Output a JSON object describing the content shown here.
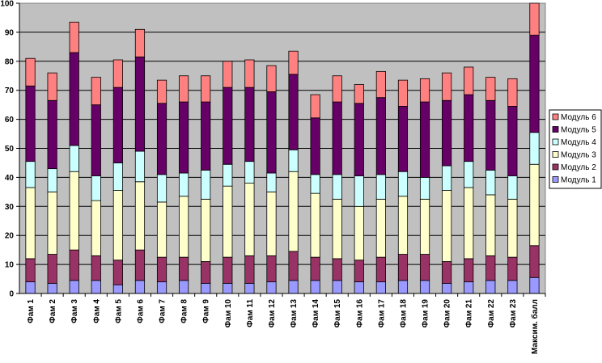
{
  "chart_data": {
    "type": "bar",
    "stacked": true,
    "title": "",
    "xlabel": "",
    "ylabel": "",
    "ylim": [
      0,
      100
    ],
    "yticks": [
      0,
      10,
      20,
      30,
      40,
      50,
      60,
      70,
      80,
      90,
      100
    ],
    "grid": true,
    "legend_position": "right",
    "categories": [
      "Фам 1",
      "Фам 2",
      "Фам 3",
      "Фам 4",
      "Фам 5",
      "Фам 6",
      "Фам 7",
      "Фам 8",
      "Фам 9",
      "Фам 10",
      "Фам 11",
      "Фам 12",
      "Фам 13",
      "Фам 14",
      "Фам 15",
      "Фам 16",
      "Фам 17",
      "Фам 18",
      "Фам 19",
      "Фам 20",
      "Фам 21",
      "Фам 22",
      "Фам 23",
      "Максим. балл"
    ],
    "series": [
      {
        "name": "Модуль 1",
        "color": "#9999ff",
        "values": [
          4,
          3.5,
          4.5,
          4.5,
          3,
          4.5,
          4,
          4.5,
          3.5,
          3.5,
          3.5,
          4,
          4.5,
          4.5,
          4.5,
          4,
          4,
          4.5,
          4.5,
          3.5,
          4,
          4.5,
          4.5,
          5.5
        ]
      },
      {
        "name": "Модуль 2",
        "color": "#993366",
        "values": [
          8,
          10,
          10.5,
          8.5,
          8.5,
          10.5,
          8.5,
          8,
          7.5,
          9,
          9.5,
          9,
          10,
          8,
          7.5,
          7.5,
          8.5,
          9,
          9,
          7.5,
          8,
          8.5,
          8,
          11
        ]
      },
      {
        "name": "Модуль 3",
        "color": "#ffffcc",
        "values": [
          24.5,
          21.5,
          27,
          19,
          24,
          23.5,
          19,
          21,
          21.5,
          24.5,
          25,
          22,
          27.5,
          22,
          20.5,
          18.5,
          20,
          20,
          19,
          24.5,
          24.5,
          21,
          20,
          28
        ]
      },
      {
        "name": "Модуль 4",
        "color": "#ccffff",
        "values": [
          9,
          8,
          9,
          8.5,
          9.5,
          10.5,
          9.5,
          8,
          10,
          7.5,
          7.5,
          6.5,
          7.5,
          6.5,
          8.5,
          10.5,
          8.5,
          8.5,
          7.5,
          8.5,
          9,
          8.5,
          8,
          11
        ]
      },
      {
        "name": "Модуль 5",
        "color": "#660066",
        "values": [
          26,
          23.5,
          32,
          24.5,
          26,
          32.5,
          24.5,
          24.5,
          23.5,
          26.5,
          25.5,
          28,
          26,
          19.5,
          25,
          25,
          26.5,
          22.5,
          26,
          22.5,
          23,
          24,
          24,
          33.5
        ]
      },
      {
        "name": "Модуль 6",
        "color": "#ff8080",
        "values": [
          9.5,
          9.5,
          10.5,
          9.5,
          9.5,
          9.5,
          8,
          9,
          9,
          9,
          9.5,
          9,
          8,
          8,
          9,
          6.5,
          9,
          9,
          8,
          9.5,
          9.5,
          8,
          9.5,
          11
        ]
      }
    ]
  },
  "legend_order": [
    "Модуль 6",
    "Модуль 5",
    "Модуль 4",
    "Модуль 3",
    "Модуль 2",
    "Модуль 1"
  ]
}
